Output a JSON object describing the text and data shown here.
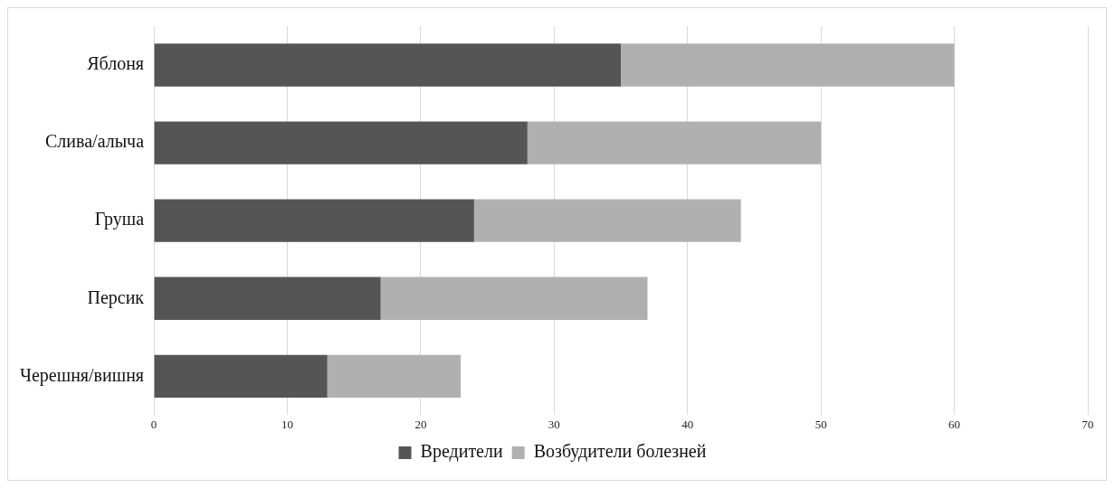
{
  "chart_data": {
    "type": "bar",
    "orientation": "horizontal",
    "stacked": true,
    "categories": [
      "Яблоня",
      "Слива/алыча",
      "Груша",
      "Персик",
      "Черешня/вишня"
    ],
    "series": [
      {
        "name": "Вредители",
        "color": "#555555",
        "values": [
          35,
          28,
          24,
          17,
          13
        ]
      },
      {
        "name": "Возбудители болезней",
        "color": "#b0b0b0",
        "values": [
          25,
          22,
          20,
          20,
          10
        ]
      }
    ],
    "xlim": [
      0,
      70
    ],
    "xticks": [
      0,
      10,
      20,
      30,
      40,
      50,
      60,
      70
    ],
    "grid": "x",
    "legend": "bottom"
  }
}
